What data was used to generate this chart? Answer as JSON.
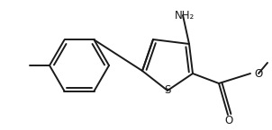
{
  "background_color": "#ffffff",
  "line_color": "#1a1a1a",
  "line_width": 1.4,
  "figsize": [
    3.02,
    1.45
  ],
  "dpi": 100,
  "xlim": [
    0,
    302
  ],
  "ylim": [
    0,
    145
  ],
  "s_label": "S",
  "s_fontsize": 8.5,
  "o1_label": "O",
  "o2_label": "O",
  "o_fontsize": 8.5,
  "nh2_label": "NH₂",
  "nh2_fontsize": 8.5,
  "ch3_label": "",
  "methyl_stub": true
}
